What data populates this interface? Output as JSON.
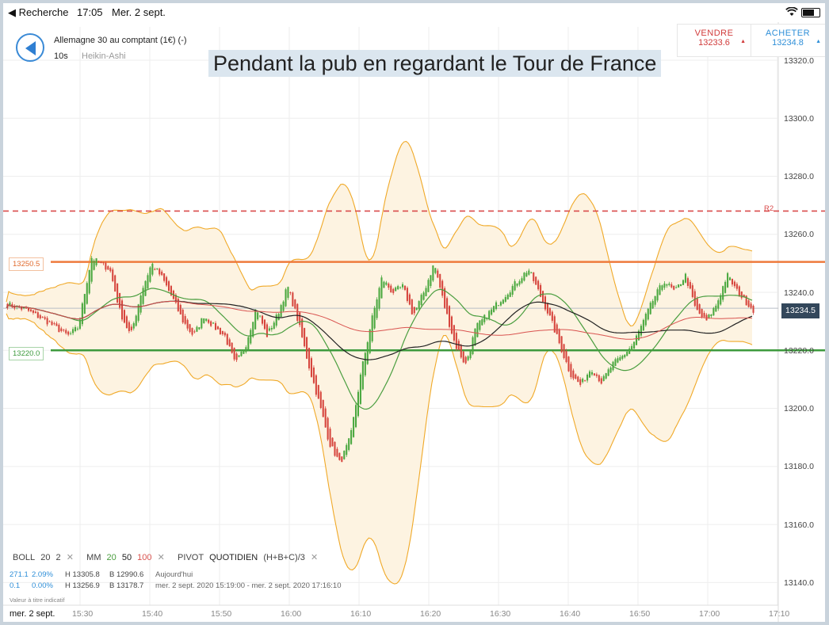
{
  "status_bar": {
    "back_label": "◀ Recherche",
    "time": "17:05",
    "date": "Mer. 2 sept."
  },
  "instrument": {
    "title": "Allemagne 30 au comptant (1€) (-)",
    "timeframe": "10s",
    "chart_type": "Heikin-Ashi"
  },
  "banner": "Pendant la pub en regardant le Tour de France",
  "trade": {
    "sell_label": "VENDRE",
    "sell_price": "13233.6",
    "buy_label": "ACHETER",
    "buy_price": "13234.8"
  },
  "levels": {
    "orange": "13250.5",
    "green": "13220.0",
    "current": "13234.5",
    "r2_label": "R2"
  },
  "indicators": {
    "boll_name": "BOLL",
    "boll_p1": "20",
    "boll_p2": "2",
    "mm_name": "MM",
    "mm_20": "20",
    "mm_50": "50",
    "mm_100": "100",
    "pivot_name": "PIVOT",
    "pivot_period": "QUOTIDIEN",
    "pivot_formula": "(H+B+C)/3",
    "remove": "✕"
  },
  "info": {
    "row1": {
      "points": "271.1",
      "pct": "2.09%",
      "high": "H 13305.8",
      "low": "B 12990.6",
      "period": "Aujourd'hui"
    },
    "row2": {
      "points": "0.1",
      "pct": "0.00%",
      "high": "H 13256.9",
      "low": "B 13178.7",
      "period": "mer. 2 sept. 2020 15:19:00 - mer. 2 sept. 2020 17:16:10"
    },
    "disclaimer": "Valeur à titre indicatif"
  },
  "x_axis": {
    "date": "mer. 2 sept.",
    "ticks": [
      "15:30",
      "15:40",
      "15:50",
      "16:00",
      "16:10",
      "16:20",
      "16:30",
      "16:40",
      "16:50",
      "17:00",
      "17:10"
    ]
  },
  "y_axis": {
    "ticks": [
      "13320.0",
      "13300.0",
      "13280.0",
      "13260.0",
      "13240.0",
      "13220.0",
      "13200.0",
      "13180.0",
      "13160.0",
      "13140.0"
    ]
  },
  "colors": {
    "up": "#4aa83f",
    "down": "#d6453d",
    "orange_line": "#ee7a3c",
    "green_line": "#3d9a3d",
    "r2": "#d94b4b",
    "boll": "#f0a928",
    "mm20": "#4a9e3f",
    "mm50": "#222222",
    "mm100": "#d9534f"
  },
  "chart_data": {
    "type": "candlestick",
    "ylim": [
      13135,
      13330
    ],
    "xlim": [
      "15:24",
      "17:13"
    ],
    "price_path": [
      {
        "t": 0,
        "p": 13236
      },
      {
        "t": 4,
        "p": 13234
      },
      {
        "t": 8,
        "p": 13230
      },
      {
        "t": 12,
        "p": 13225
      },
      {
        "t": 14,
        "p": 13228
      },
      {
        "t": 15,
        "p": 13238
      },
      {
        "t": 16.5,
        "p": 13252
      },
      {
        "t": 18,
        "p": 13250
      },
      {
        "t": 20,
        "p": 13248
      },
      {
        "t": 22,
        "p": 13233
      },
      {
        "t": 24,
        "p": 13225
      },
      {
        "t": 26,
        "p": 13240
      },
      {
        "t": 28,
        "p": 13250
      },
      {
        "t": 30,
        "p": 13245
      },
      {
        "t": 32,
        "p": 13238
      },
      {
        "t": 34,
        "p": 13230
      },
      {
        "t": 36,
        "p": 13225
      },
      {
        "t": 38,
        "p": 13232
      },
      {
        "t": 40,
        "p": 13228
      },
      {
        "t": 42,
        "p": 13225
      },
      {
        "t": 44,
        "p": 13215
      },
      {
        "t": 46,
        "p": 13222
      },
      {
        "t": 48,
        "p": 13235
      },
      {
        "t": 50,
        "p": 13225
      },
      {
        "t": 52,
        "p": 13232
      },
      {
        "t": 54,
        "p": 13242
      },
      {
        "t": 56,
        "p": 13230
      },
      {
        "t": 58,
        "p": 13215
      },
      {
        "t": 60,
        "p": 13202
      },
      {
        "t": 62,
        "p": 13188
      },
      {
        "t": 64,
        "p": 13181
      },
      {
        "t": 66,
        "p": 13190
      },
      {
        "t": 68,
        "p": 13212
      },
      {
        "t": 70,
        "p": 13230
      },
      {
        "t": 72,
        "p": 13245
      },
      {
        "t": 74,
        "p": 13240
      },
      {
        "t": 76,
        "p": 13242
      },
      {
        "t": 78,
        "p": 13232
      },
      {
        "t": 80,
        "p": 13240
      },
      {
        "t": 82,
        "p": 13250
      },
      {
        "t": 84,
        "p": 13235
      },
      {
        "t": 86,
        "p": 13222
      },
      {
        "t": 88,
        "p": 13215
      },
      {
        "t": 90,
        "p": 13228
      },
      {
        "t": 92,
        "p": 13232
      },
      {
        "t": 94,
        "p": 13236
      },
      {
        "t": 96,
        "p": 13240
      },
      {
        "t": 98,
        "p": 13244
      },
      {
        "t": 100,
        "p": 13248
      },
      {
        "t": 102,
        "p": 13240
      },
      {
        "t": 104,
        "p": 13232
      },
      {
        "t": 106,
        "p": 13222
      },
      {
        "t": 108,
        "p": 13212
      },
      {
        "t": 110,
        "p": 13208
      },
      {
        "t": 112,
        "p": 13214
      },
      {
        "t": 114,
        "p": 13209
      },
      {
        "t": 116,
        "p": 13215
      },
      {
        "t": 118,
        "p": 13218
      },
      {
        "t": 120,
        "p": 13222
      },
      {
        "t": 122,
        "p": 13230
      },
      {
        "t": 124,
        "p": 13238
      },
      {
        "t": 126,
        "p": 13244
      },
      {
        "t": 128,
        "p": 13240
      },
      {
        "t": 130,
        "p": 13246
      },
      {
        "t": 132,
        "p": 13234
      },
      {
        "t": 134,
        "p": 13230
      },
      {
        "t": 136,
        "p": 13236
      },
      {
        "t": 138,
        "p": 13246
      },
      {
        "t": 140,
        "p": 13240
      },
      {
        "t": 142,
        "p": 13236
      },
      {
        "t": 143,
        "p": 13234
      }
    ],
    "bollinger_period": 20,
    "bollinger_dev": 2,
    "moving_averages": [
      20,
      50,
      100
    ]
  }
}
